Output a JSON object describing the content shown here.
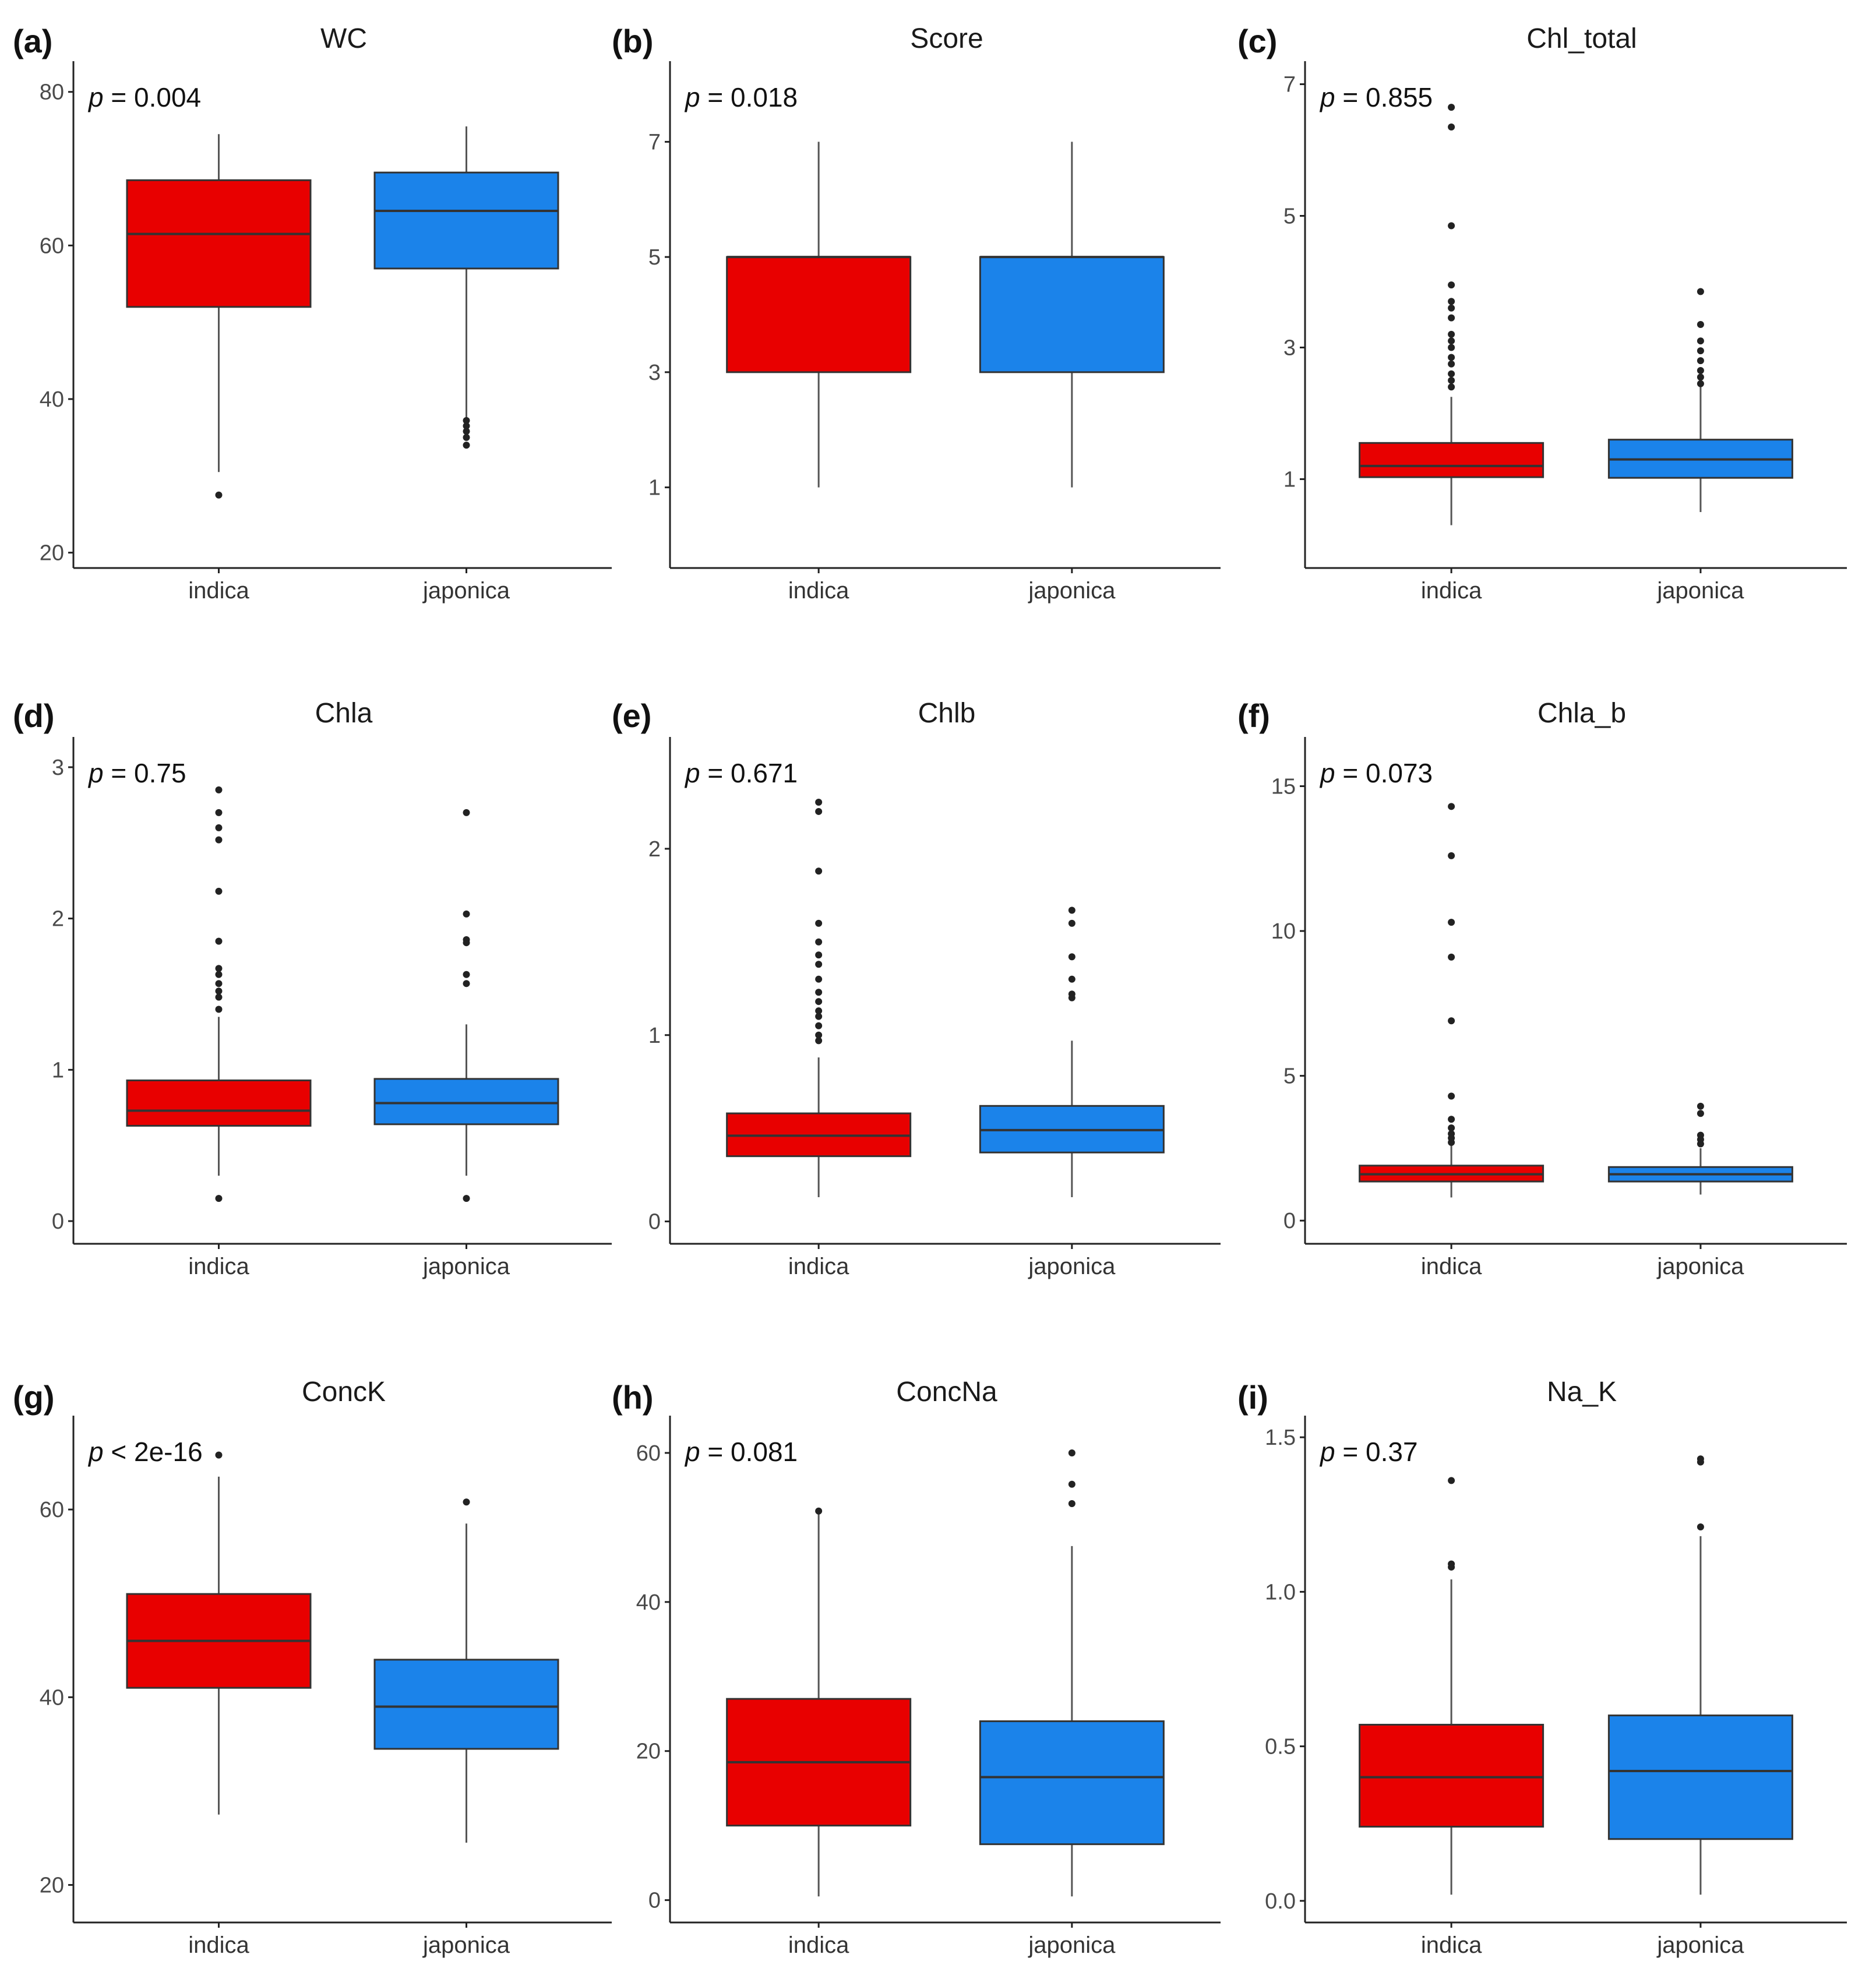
{
  "figure": {
    "colors": {
      "indica": "#e80000",
      "japonica": "#1b83ea"
    },
    "categories": [
      "indica",
      "japonica"
    ]
  },
  "chart_data": [
    {
      "letter": "(a)",
      "title": "WC",
      "type": "box",
      "ylim": [
        18,
        84
      ],
      "yticks": [
        20,
        40,
        60,
        80
      ],
      "p_symbol": "p",
      "p_rest": " = 0.004",
      "series": [
        {
          "name": "indica",
          "q1": 52,
          "median": 61.5,
          "q3": 68.5,
          "low": 30.5,
          "high": 74.5,
          "outliers": [
            27.5
          ]
        },
        {
          "name": "japonica",
          "q1": 57,
          "median": 64.5,
          "q3": 69.5,
          "low": 37.5,
          "high": 75.5,
          "outliers": [
            34,
            35,
            35.8,
            36.5,
            37.2
          ]
        }
      ]
    },
    {
      "letter": "(b)",
      "title": "Score",
      "type": "box",
      "ylim": [
        -0.4,
        8.4
      ],
      "yticks": [
        1,
        3,
        5,
        7
      ],
      "p_symbol": "p",
      "p_rest": " = 0.018",
      "series": [
        {
          "name": "indica",
          "q1": 3,
          "median": 5,
          "q3": 5,
          "low": 1,
          "high": 7,
          "outliers": []
        },
        {
          "name": "japonica",
          "q1": 3,
          "median": 5,
          "q3": 5,
          "low": 1,
          "high": 7,
          "outliers": []
        }
      ]
    },
    {
      "letter": "(c)",
      "title": "Chl_total",
      "type": "box",
      "ylim": [
        -0.35,
        7.35
      ],
      "yticks": [
        1,
        3,
        5,
        7
      ],
      "p_symbol": "p",
      "p_rest": " = 0.855",
      "series": [
        {
          "name": "indica",
          "q1": 1.03,
          "median": 1.2,
          "q3": 1.55,
          "low": 0.3,
          "high": 2.25,
          "outliers": [
            2.4,
            2.5,
            2.6,
            2.75,
            2.85,
            3.0,
            3.1,
            3.2,
            3.45,
            3.6,
            3.7,
            3.95,
            4.85,
            6.35,
            6.65
          ]
        },
        {
          "name": "japonica",
          "q1": 1.02,
          "median": 1.3,
          "q3": 1.6,
          "low": 0.5,
          "high": 2.4,
          "outliers": [
            2.45,
            2.55,
            2.65,
            2.8,
            2.95,
            3.1,
            3.35,
            3.85
          ]
        }
      ]
    },
    {
      "letter": "(d)",
      "title": "Chla",
      "type": "box",
      "ylim": [
        -0.15,
        3.2
      ],
      "yticks": [
        0,
        1,
        2,
        3
      ],
      "p_symbol": "p",
      "p_rest": " = 0.75",
      "series": [
        {
          "name": "indica",
          "q1": 0.63,
          "median": 0.73,
          "q3": 0.93,
          "low": 0.3,
          "high": 1.35,
          "outliers": [
            0.15,
            1.4,
            1.48,
            1.52,
            1.57,
            1.63,
            1.67,
            1.85,
            2.18,
            2.52,
            2.6,
            2.7,
            2.85
          ]
        },
        {
          "name": "japonica",
          "q1": 0.64,
          "median": 0.78,
          "q3": 0.94,
          "low": 0.3,
          "high": 1.3,
          "outliers": [
            0.15,
            1.57,
            1.63,
            1.84,
            1.86,
            2.03,
            2.7
          ]
        }
      ]
    },
    {
      "letter": "(e)",
      "title": "Chlb",
      "type": "box",
      "ylim": [
        -0.12,
        2.6
      ],
      "yticks": [
        0,
        1,
        2
      ],
      "p_symbol": "p",
      "p_rest": " = 0.671",
      "series": [
        {
          "name": "indica",
          "q1": 0.35,
          "median": 0.46,
          "q3": 0.58,
          "low": 0.13,
          "high": 0.88,
          "outliers": [
            0.97,
            1.0,
            1.05,
            1.1,
            1.13,
            1.18,
            1.23,
            1.3,
            1.38,
            1.43,
            1.5,
            1.6,
            1.88,
            2.2,
            2.25
          ]
        },
        {
          "name": "japonica",
          "q1": 0.37,
          "median": 0.49,
          "q3": 0.62,
          "low": 0.13,
          "high": 0.97,
          "outliers": [
            1.2,
            1.22,
            1.3,
            1.42,
            1.6,
            1.67
          ]
        }
      ]
    },
    {
      "letter": "(f)",
      "title": "Chla_b",
      "type": "box",
      "ylim": [
        -0.8,
        16.7
      ],
      "yticks": [
        0,
        5,
        10,
        15
      ],
      "p_symbol": "p",
      "p_rest": " = 0.073",
      "series": [
        {
          "name": "indica",
          "q1": 1.35,
          "median": 1.6,
          "q3": 1.9,
          "low": 0.8,
          "high": 2.6,
          "outliers": [
            2.7,
            2.85,
            3.0,
            3.2,
            3.5,
            4.3,
            6.9,
            9.1,
            10.3,
            12.6,
            14.3
          ]
        },
        {
          "name": "japonica",
          "q1": 1.35,
          "median": 1.6,
          "q3": 1.85,
          "low": 0.9,
          "high": 2.5,
          "outliers": [
            2.65,
            2.8,
            2.95,
            3.7,
            3.95
          ]
        }
      ]
    },
    {
      "letter": "(g)",
      "title": "ConcK",
      "type": "box",
      "ylim": [
        16,
        70
      ],
      "yticks": [
        20,
        40,
        60
      ],
      "p_symbol": "p",
      "p_rest": " < 2e-16",
      "series": [
        {
          "name": "indica",
          "q1": 41,
          "median": 46,
          "q3": 51,
          "low": 27.5,
          "high": 63.5,
          "outliers": [
            65.8
          ]
        },
        {
          "name": "japonica",
          "q1": 34.5,
          "median": 39,
          "q3": 44,
          "low": 24.5,
          "high": 58.5,
          "outliers": [
            60.8
          ]
        }
      ]
    },
    {
      "letter": "(h)",
      "title": "ConcNa",
      "type": "box",
      "ylim": [
        -3,
        65
      ],
      "yticks": [
        0,
        20,
        40,
        60
      ],
      "p_symbol": "p",
      "p_rest": " = 0.081",
      "series": [
        {
          "name": "indica",
          "q1": 10,
          "median": 18.5,
          "q3": 27,
          "low": 0.5,
          "high": 52,
          "outliers": [
            52.2
          ]
        },
        {
          "name": "japonica",
          "q1": 7.5,
          "median": 16.5,
          "q3": 24,
          "low": 0.5,
          "high": 47.5,
          "outliers": [
            53.2,
            55.8,
            60
          ]
        }
      ]
    },
    {
      "letter": "(i)",
      "title": "Na_K",
      "type": "box",
      "ylim": [
        -0.07,
        1.57
      ],
      "yticks": [
        "0.0",
        "0.5",
        "1.0",
        "1.5"
      ],
      "p_symbol": "p",
      "p_rest": " = 0.37",
      "series": [
        {
          "name": "indica",
          "q1": 0.24,
          "median": 0.4,
          "q3": 0.57,
          "low": 0.02,
          "high": 1.04,
          "outliers": [
            1.08,
            1.09,
            1.36
          ]
        },
        {
          "name": "japonica",
          "q1": 0.2,
          "median": 0.42,
          "q3": 0.6,
          "low": 0.02,
          "high": 1.18,
          "outliers": [
            1.21,
            1.42,
            1.43
          ]
        }
      ]
    }
  ]
}
